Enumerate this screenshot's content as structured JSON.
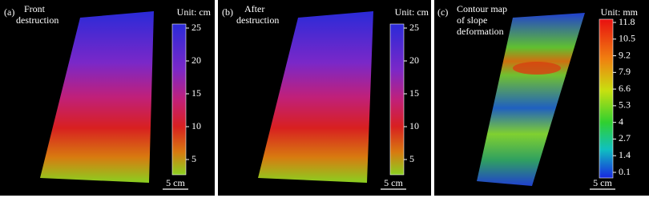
{
  "panels": [
    {
      "label": "(a)",
      "title": [
        "Front",
        "destruction"
      ],
      "unit": "Unit: cm",
      "colorbar_ticks": [
        "25",
        "20",
        "15",
        "10",
        "5"
      ],
      "scale_bar": "5 cm"
    },
    {
      "label": "(b)",
      "title": [
        "After",
        "destruction"
      ],
      "unit": "Unit: cm",
      "colorbar_ticks": [
        "25",
        "20",
        "15",
        "10",
        "5"
      ],
      "scale_bar": "5 cm"
    },
    {
      "label": "(c)",
      "title": [
        "Contour map",
        "of slope",
        "deformation"
      ],
      "unit": "Unit: mm",
      "colorbar_ticks": [
        "11.8",
        "10.5",
        "9.2",
        "7.9",
        "6.6",
        "5.3",
        "4",
        "2.7",
        "1.4",
        "0.1"
      ],
      "scale_bar": "5 cm"
    }
  ]
}
